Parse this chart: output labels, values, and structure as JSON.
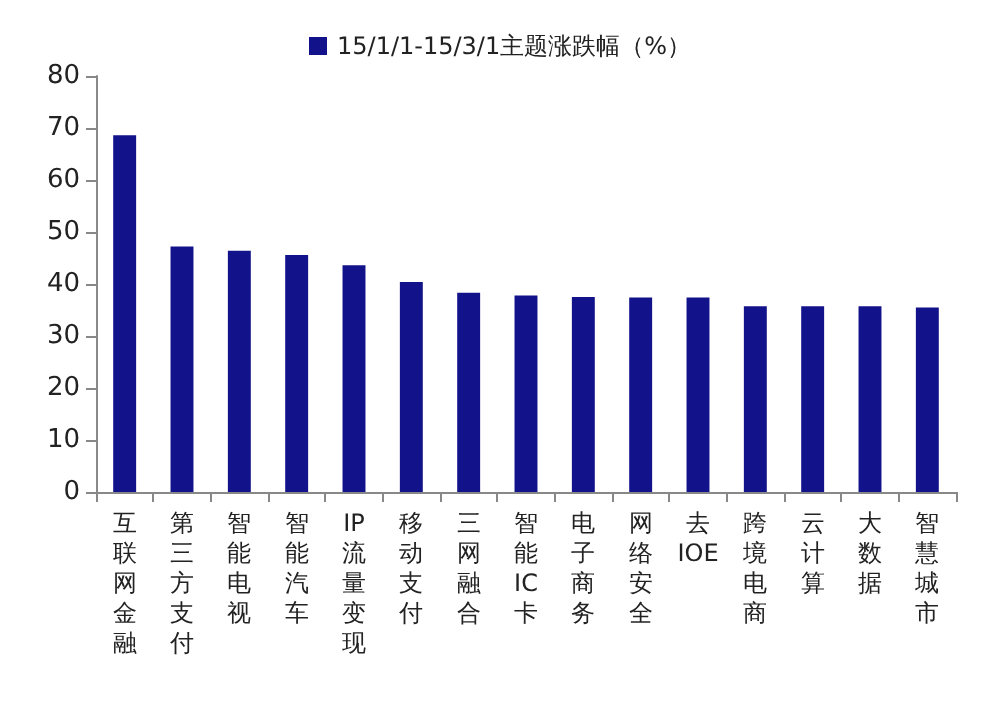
{
  "chart_data": {
    "type": "bar",
    "categories": [
      "互联网金融",
      "第三方支付",
      "智能电视",
      "智能汽车",
      "IP流量变现",
      "移动支付",
      "三网融合",
      "智能IC卡",
      "电子商务",
      "网络安全",
      "去IOE",
      "跨境电商",
      "云计算",
      "大数据",
      "智慧城市"
    ],
    "series": [
      {
        "name": "15/1/1-15/3/1主题涨跌幅（%）",
        "color": "#12128a",
        "values": [
          68.6,
          47.2,
          46.4,
          45.6,
          43.6,
          40.4,
          38.3,
          37.8,
          37.5,
          37.4,
          37.4,
          35.7,
          35.7,
          35.7,
          35.5
        ]
      }
    ],
    "ylim": [
      0,
      80
    ],
    "yticks": [
      0,
      10,
      20,
      30,
      40,
      50,
      60,
      70,
      80
    ],
    "grid": false,
    "legend": "top"
  }
}
